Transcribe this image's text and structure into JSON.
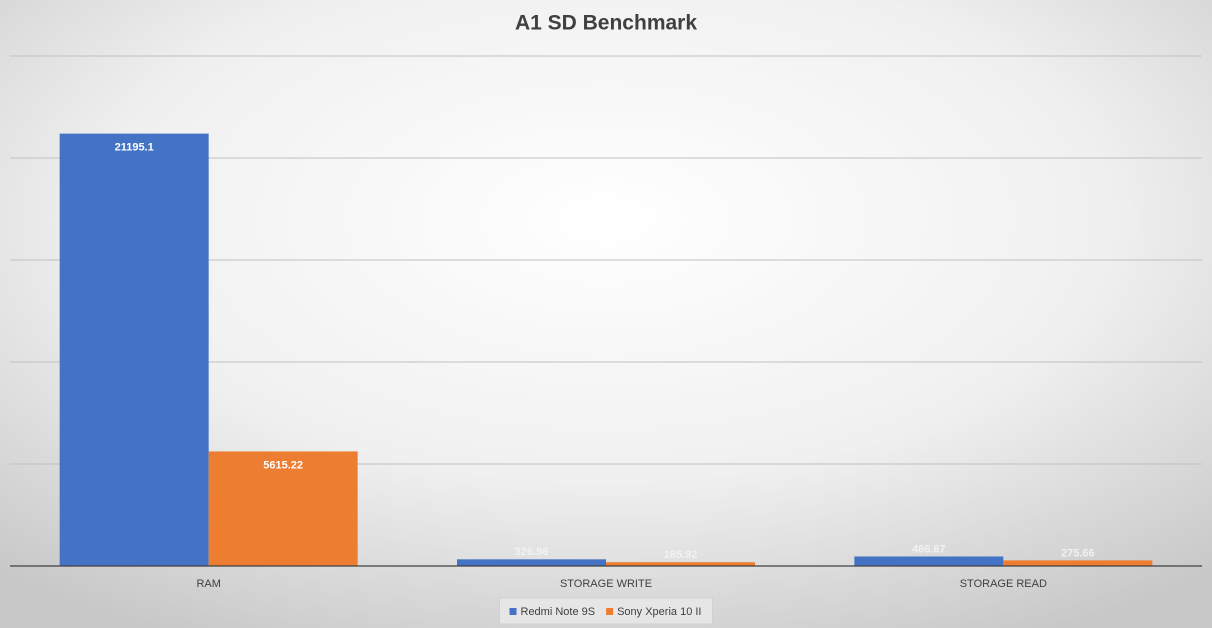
{
  "chart_data": {
    "type": "bar",
    "title": "A1 SD Benchmark",
    "categories": [
      "RAM",
      "STORAGE WRITE",
      "STORAGE READ"
    ],
    "series": [
      {
        "name": "Redmi Note 9S",
        "color": "#4472c4",
        "values": [
          21195.1,
          326.96,
          466.67
        ]
      },
      {
        "name": "Sony Xperia 10 II",
        "color": "#ed7d31",
        "values": [
          5615.22,
          185.92,
          275.66
        ]
      }
    ],
    "ylim": [
      0,
      25000
    ],
    "yticks": [
      0,
      5000,
      10000,
      15000,
      20000,
      25000
    ],
    "grid": true,
    "tick_labels": false,
    "legend": "bottom"
  }
}
